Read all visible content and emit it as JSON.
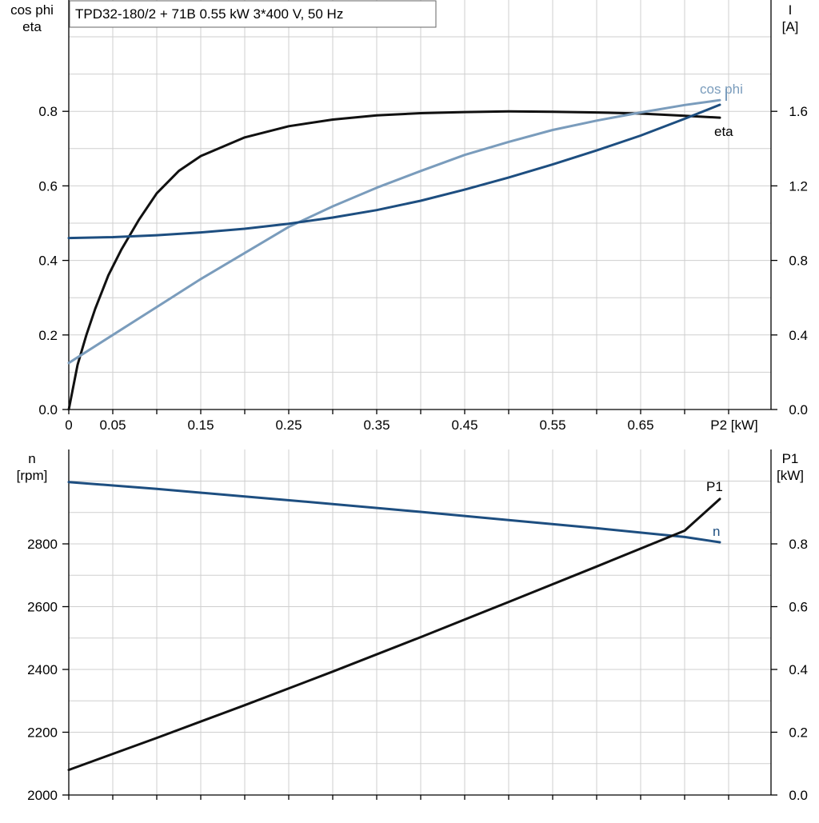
{
  "chart_data": [
    {
      "type": "line",
      "title": "TPD32-180/2 + 71B   0.55 kW   3*400 V, 50 Hz",
      "xlabel": "P2 [kW]",
      "x_ticks": [
        "0",
        "0.05",
        "0.15",
        "0.25",
        "0.35",
        "0.45",
        "0.55",
        "0.65"
      ],
      "xlim": [
        0,
        0.8
      ],
      "grid": true,
      "left_axis": {
        "label": [
          "cos phi",
          "eta"
        ],
        "ylim": [
          0,
          1.05
        ],
        "ticks": [
          "0.0",
          "0.2",
          "0.4",
          "0.6",
          "0.8"
        ]
      },
      "right_axis": {
        "label": [
          "I",
          "[A]"
        ],
        "ylim": [
          0,
          2.1
        ],
        "ticks": [
          "0.0",
          "0.4",
          "0.8",
          "1.2",
          "1.6"
        ]
      },
      "series": [
        {
          "name": "eta",
          "axis": "left",
          "color": "#111111",
          "x": [
            0,
            0.01,
            0.02,
            0.03,
            0.045,
            0.06,
            0.08,
            0.1,
            0.125,
            0.15,
            0.2,
            0.25,
            0.3,
            0.35,
            0.4,
            0.45,
            0.5,
            0.55,
            0.6,
            0.65,
            0.7,
            0.74
          ],
          "y": [
            0.0,
            0.12,
            0.2,
            0.27,
            0.36,
            0.43,
            0.51,
            0.58,
            0.64,
            0.68,
            0.73,
            0.76,
            0.778,
            0.789,
            0.795,
            0.798,
            0.8,
            0.799,
            0.797,
            0.794,
            0.788,
            0.783
          ]
        },
        {
          "name": "cos phi",
          "axis": "left",
          "color": "#7a9cbc",
          "x": [
            0,
            0.05,
            0.1,
            0.15,
            0.2,
            0.25,
            0.3,
            0.35,
            0.4,
            0.45,
            0.5,
            0.55,
            0.6,
            0.65,
            0.7,
            0.74
          ],
          "y": [
            0.125,
            0.2,
            0.275,
            0.35,
            0.42,
            0.49,
            0.545,
            0.595,
            0.64,
            0.683,
            0.718,
            0.75,
            0.775,
            0.797,
            0.817,
            0.83
          ]
        },
        {
          "name": "I",
          "axis": "right",
          "color": "#1d4e80",
          "x": [
            0,
            0.05,
            0.1,
            0.15,
            0.2,
            0.25,
            0.3,
            0.35,
            0.4,
            0.45,
            0.5,
            0.55,
            0.6,
            0.65,
            0.7,
            0.74
          ],
          "y": [
            0.92,
            0.925,
            0.935,
            0.95,
            0.97,
            0.997,
            1.03,
            1.07,
            1.12,
            1.18,
            1.245,
            1.315,
            1.39,
            1.47,
            1.56,
            1.635
          ]
        }
      ],
      "annotations": [
        "cos phi",
        "eta"
      ]
    },
    {
      "type": "line",
      "xlim": [
        0,
        0.8
      ],
      "grid": true,
      "left_axis": {
        "label": [
          "n",
          "[rpm]"
        ],
        "ylim": [
          2000,
          3000
        ],
        "ticks": [
          "2000",
          "2200",
          "2400",
          "2600",
          "2800"
        ]
      },
      "right_axis": {
        "label": [
          "P1",
          "[kW]"
        ],
        "ylim": [
          0,
          1.0
        ],
        "ticks": [
          "0.0",
          "0.2",
          "0.4",
          "0.6",
          "0.8"
        ]
      },
      "series": [
        {
          "name": "n",
          "axis": "left",
          "color": "#1d4e80",
          "x": [
            0,
            0.1,
            0.2,
            0.3,
            0.4,
            0.5,
            0.6,
            0.7,
            0.74
          ],
          "y": [
            2997,
            2975,
            2951,
            2927,
            2902,
            2876,
            2850,
            2822,
            2805
          ]
        },
        {
          "name": "P1",
          "axis": "right",
          "color": "#111111",
          "x": [
            0,
            0.1,
            0.2,
            0.3,
            0.4,
            0.5,
            0.6,
            0.7,
            0.74
          ],
          "y": [
            0.08,
            0.182,
            0.286,
            0.393,
            0.503,
            0.615,
            0.728,
            0.842,
            0.943
          ]
        }
      ],
      "annotations": [
        "P1",
        "n"
      ]
    }
  ]
}
